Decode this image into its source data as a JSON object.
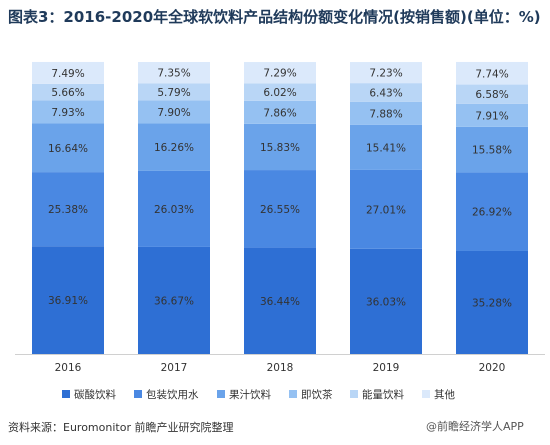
{
  "header": {
    "title": "图表3：2016-2020年全球软饮料产品结构份额变化情况(按销售额)(单位：%)"
  },
  "footer": {
    "source": "资料来源：Euromonitor 前瞻产业研究院整理",
    "brand": "@前瞻经济学人APP"
  },
  "chart_data": {
    "type": "bar",
    "stacked": true,
    "categories": [
      "2016",
      "2017",
      "2018",
      "2019",
      "2020"
    ],
    "series": [
      {
        "name": "碳酸饮料",
        "color": "#2e6fd4",
        "values": [
          36.91,
          36.67,
          36.44,
          36.03,
          35.28
        ],
        "labels": [
          "36.91%",
          "36.67%",
          "36.44%",
          "36.03%",
          "35.28%"
        ]
      },
      {
        "name": "包装饮用水",
        "color": "#4a88e2",
        "values": [
          25.38,
          26.03,
          26.55,
          27.01,
          26.92
        ],
        "labels": [
          "25.38%",
          "26.03%",
          "26.55%",
          "27.01%",
          "26.92%"
        ]
      },
      {
        "name": "果汁饮料",
        "color": "#6aa3ea",
        "values": [
          16.64,
          16.26,
          15.83,
          15.41,
          15.58
        ],
        "labels": [
          "16.64%",
          "16.26%",
          "15.83%",
          "15.41%",
          "15.58%"
        ]
      },
      {
        "name": "即饮茶",
        "color": "#95c1f2",
        "values": [
          7.93,
          7.9,
          7.86,
          7.88,
          7.91
        ],
        "labels": [
          "7.93%",
          "7.90%",
          "7.86%",
          "7.88%",
          "7.91%"
        ]
      },
      {
        "name": "能量饮料",
        "color": "#b9d6f6",
        "values": [
          5.66,
          5.79,
          6.02,
          6.43,
          6.58
        ],
        "labels": [
          "5.66%",
          "5.79%",
          "6.02%",
          "6.43%",
          "6.58%"
        ]
      },
      {
        "name": "其他",
        "color": "#dbe9fb",
        "values": [
          7.49,
          7.35,
          7.29,
          7.23,
          7.74
        ],
        "labels": [
          "7.49%",
          "7.35%",
          "7.29%",
          "7.23%",
          "7.74%"
        ]
      }
    ],
    "ylim": [
      0,
      100
    ],
    "grid": false,
    "legend_position": "bottom"
  }
}
